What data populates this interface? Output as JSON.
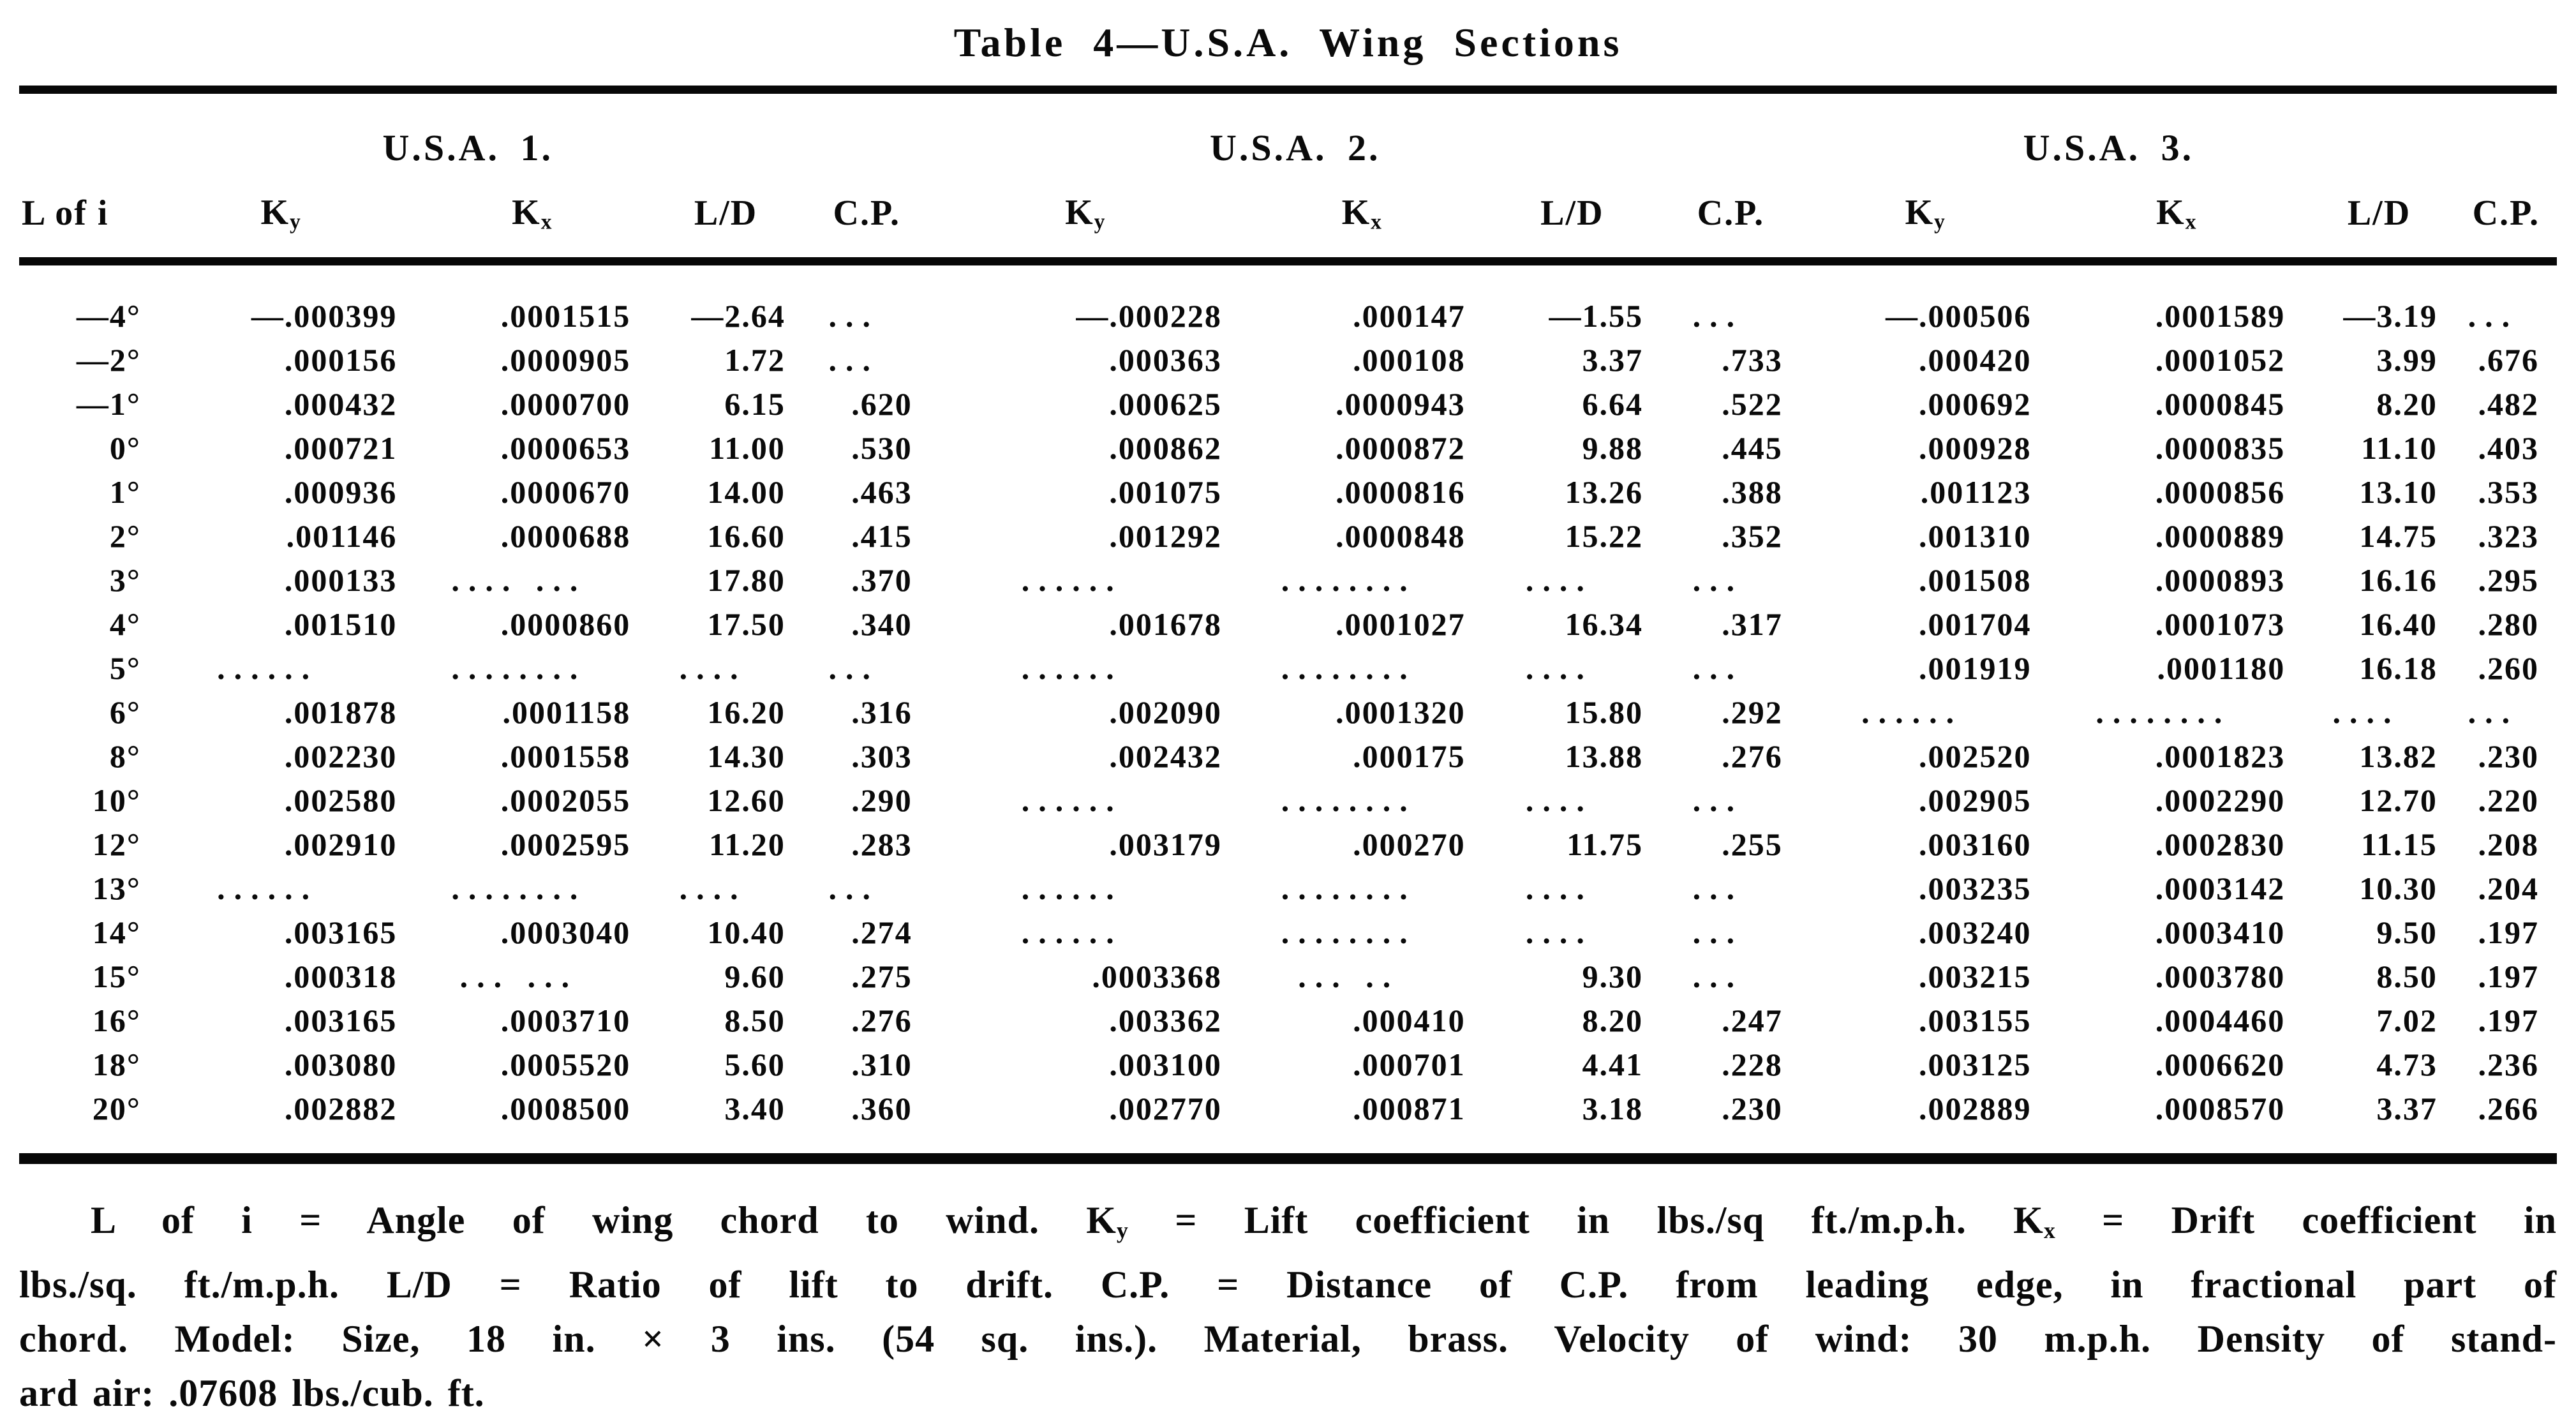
{
  "title": "Table 4—U.S.A. Wing Sections",
  "table": {
    "row_header": "L of i",
    "groups": [
      {
        "label": "U.S.A. 1."
      },
      {
        "label": "U.S.A. 2."
      },
      {
        "label": "U.S.A. 3."
      }
    ],
    "columns": [
      "Ky",
      "Kx",
      "L/D",
      "C.P."
    ],
    "rows": [
      {
        "angle": "—4°",
        "cells": [
          "—.000399",
          ".0001515",
          "—2.64",
          "...",
          "—.000228",
          ".000147",
          "—1.55",
          "...",
          "—.000506",
          ".0001589",
          "—3.19",
          "..."
        ]
      },
      {
        "angle": "—2°",
        "cells": [
          ".000156",
          ".0000905",
          "1.72",
          "...",
          ".000363",
          ".000108",
          "3.37",
          ".733",
          ".000420",
          ".0001052",
          "3.99",
          ".676"
        ]
      },
      {
        "angle": "—1°",
        "cells": [
          ".000432",
          ".0000700",
          "6.15",
          ".620",
          ".000625",
          ".0000943",
          "6.64",
          ".522",
          ".000692",
          ".0000845",
          "8.20",
          ".482"
        ]
      },
      {
        "angle": "0°",
        "cells": [
          ".000721",
          ".0000653",
          "11.00",
          ".530",
          ".000862",
          ".0000872",
          "9.88",
          ".445",
          ".000928",
          ".0000835",
          "11.10",
          ".403"
        ]
      },
      {
        "angle": "1°",
        "cells": [
          ".000936",
          ".0000670",
          "14.00",
          ".463",
          ".001075",
          ".0000816",
          "13.26",
          ".388",
          ".001123",
          ".0000856",
          "13.10",
          ".353"
        ]
      },
      {
        "angle": "2°",
        "cells": [
          ".001146",
          ".0000688",
          "16.60",
          ".415",
          ".001292",
          ".0000848",
          "15.22",
          ".352",
          ".001310",
          ".0000889",
          "14.75",
          ".323"
        ]
      },
      {
        "angle": "3°",
        "cells": [
          ".000133",
          ".... ...",
          "17.80",
          ".370",
          "......",
          "........",
          "....",
          "...",
          ".001508",
          ".0000893",
          "16.16",
          ".295"
        ]
      },
      {
        "angle": "4°",
        "cells": [
          ".001510",
          ".0000860",
          "17.50",
          ".340",
          ".001678",
          ".0001027",
          "16.34",
          ".317",
          ".001704",
          ".0001073",
          "16.40",
          ".280"
        ]
      },
      {
        "angle": "5°",
        "cells": [
          "......",
          "........",
          "....",
          "...",
          "......",
          "........",
          "....",
          "...",
          ".001919",
          ".0001180",
          "16.18",
          ".260"
        ]
      },
      {
        "angle": "6°",
        "cells": [
          ".001878",
          ".0001158",
          "16.20",
          ".316",
          ".002090",
          ".0001320",
          "15.80",
          ".292",
          "......",
          "........",
          "....",
          "..."
        ]
      },
      {
        "angle": "8°",
        "cells": [
          ".002230",
          ".0001558",
          "14.30",
          ".303",
          ".002432",
          ".000175",
          "13.88",
          ".276",
          ".002520",
          ".0001823",
          "13.82",
          ".230"
        ]
      },
      {
        "angle": "10°",
        "cells": [
          ".002580",
          ".0002055",
          "12.60",
          ".290",
          "......",
          "........",
          "....",
          "...",
          ".002905",
          ".0002290",
          "12.70",
          ".220"
        ]
      },
      {
        "angle": "12°",
        "cells": [
          ".002910",
          ".0002595",
          "11.20",
          ".283",
          ".003179",
          ".000270",
          "11.75",
          ".255",
          ".003160",
          ".0002830",
          "11.15",
          ".208"
        ]
      },
      {
        "angle": "13°",
        "cells": [
          "......",
          "........",
          "....",
          "...",
          "......",
          "........",
          "....",
          "...",
          ".003235",
          ".0003142",
          "10.30",
          ".204"
        ]
      },
      {
        "angle": "14°",
        "cells": [
          ".003165",
          ".0003040",
          "10.40",
          ".274",
          "......",
          "........",
          "....",
          "...",
          ".003240",
          ".0003410",
          "9.50",
          ".197"
        ]
      },
      {
        "angle": "15°",
        "cells": [
          ".000318",
          "... ...",
          "9.60",
          ".275",
          ".0003368",
          "... ..",
          "9.30",
          "...",
          ".003215",
          ".0003780",
          "8.50",
          ".197"
        ]
      },
      {
        "angle": "16°",
        "cells": [
          ".003165",
          ".0003710",
          "8.50",
          ".276",
          ".003362",
          ".000410",
          "8.20",
          ".247",
          ".003155",
          ".0004460",
          "7.02",
          ".197"
        ]
      },
      {
        "angle": "18°",
        "cells": [
          ".003080",
          ".0005520",
          "5.60",
          ".310",
          ".003100",
          ".000701",
          "4.41",
          ".228",
          ".003125",
          ".0006620",
          "4.73",
          ".236"
        ]
      },
      {
        "angle": "20°",
        "cells": [
          ".002882",
          ".0008500",
          "3.40",
          ".360",
          ".002770",
          ".000871",
          "3.18",
          ".230",
          ".002889",
          ".0008570",
          "3.37",
          ".266"
        ]
      }
    ]
  },
  "footnote": {
    "lines": [
      "L of i = Angle of wing chord to wind.  Ky = Lift coefficient in lbs./sq ft./m.p.h.  Kx = Drift coefficient in",
      "lbs./sq. ft./m.p.h.  L/D = Ratio of lift to drift.  C.P. = Distance of C.P. from leading edge, in fractional part of",
      "chord.  Model: Size, 18 in. × 3 ins. (54 sq. ins.).  Material, brass.  Velocity of wind: 30 m.p.h.  Density of stand-",
      "ard air: .07608 lbs./cub. ft."
    ]
  },
  "ink_color": "#0a0a0a",
  "paper_color": "#ffffff"
}
